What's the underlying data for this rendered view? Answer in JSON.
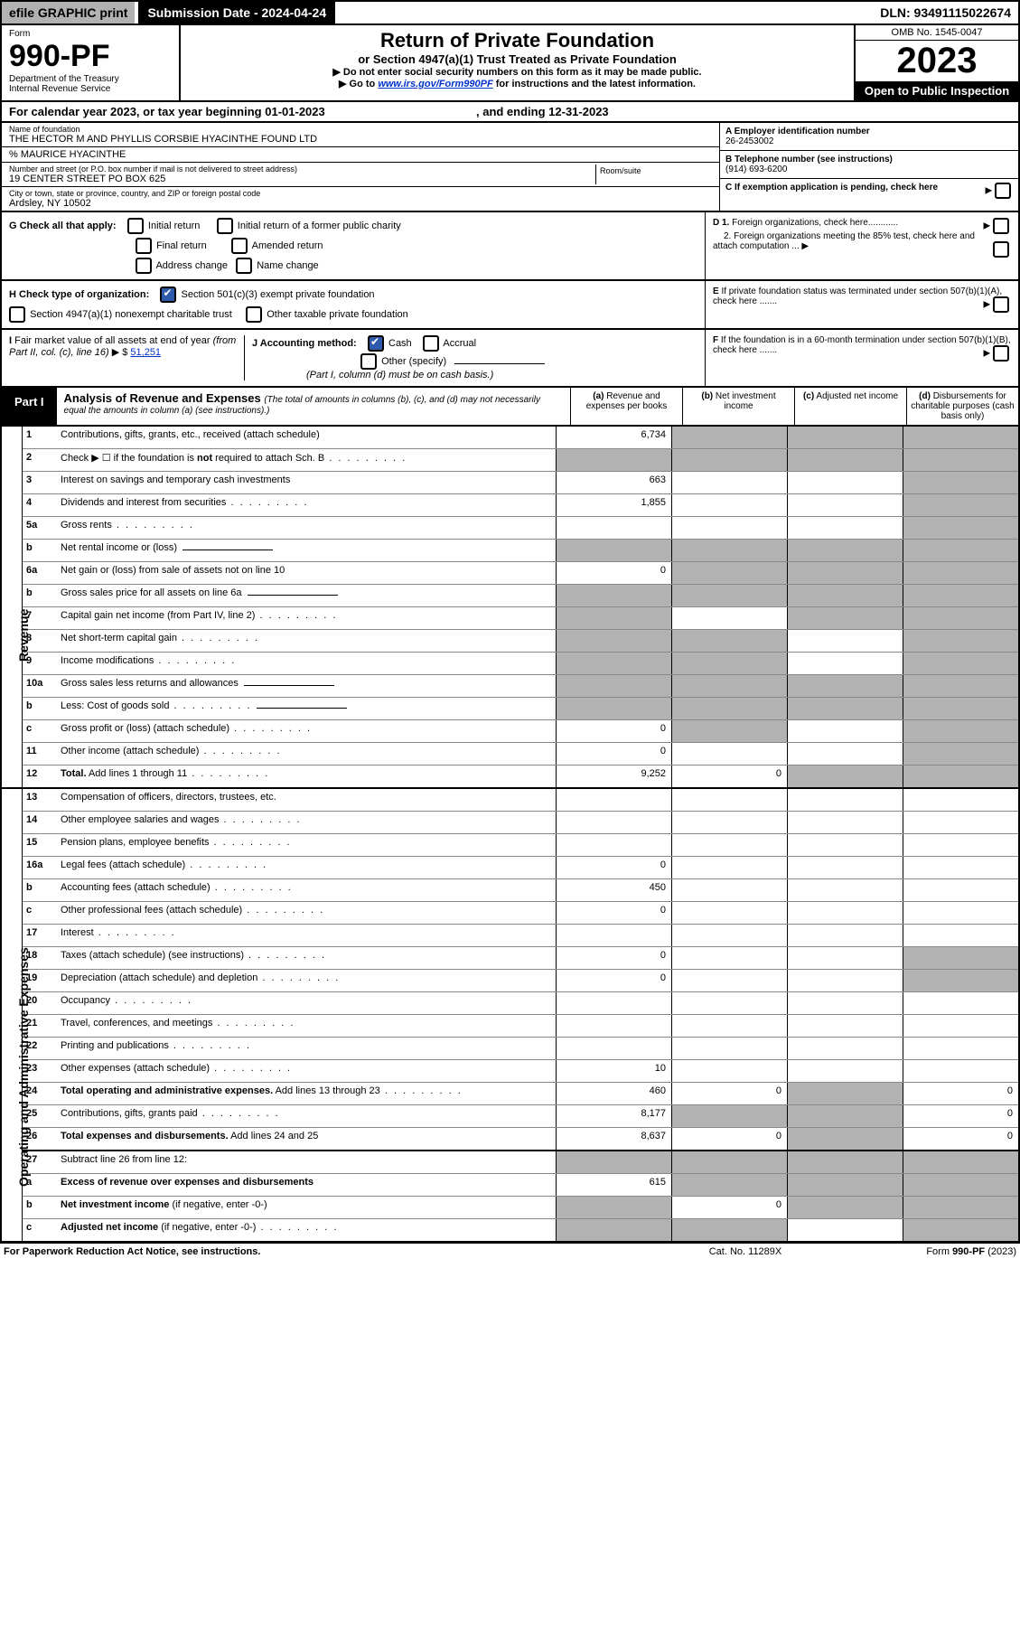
{
  "topbar": {
    "efile": "efile GRAPHIC print",
    "submission": "Submission Date - 2024-04-24",
    "dln": "DLN: 93491115022674"
  },
  "header": {
    "form_label": "Form",
    "form_no": "990-PF",
    "dept1": "Department of the Treasury",
    "dept2": "Internal Revenue Service",
    "title": "Return of Private Foundation",
    "sub": "or Section 4947(a)(1) Trust Treated as Private Foundation",
    "note1": "▶ Do not enter social security numbers on this form as it may be made public.",
    "note2_pre": "▶ Go to ",
    "note2_link": "www.irs.gov/Form990PF",
    "note2_post": " for instructions and the latest information.",
    "omb": "OMB No. 1545-0047",
    "year": "2023",
    "open": "Open to Public Inspection"
  },
  "calyear": {
    "text_pre": "For calendar year 2023, or tax year beginning ",
    "start": "01-01-2023",
    "text_mid": " , and ending ",
    "end": "12-31-2023"
  },
  "ident": {
    "name_lbl": "Name of foundation",
    "name": "THE HECTOR M AND PHYLLIS CORSBIE HYACINTHE FOUND LTD",
    "careof": "% MAURICE HYACINTHE",
    "addr_lbl": "Number and street (or P.O. box number if mail is not delivered to street address)",
    "addr": "19 CENTER STREET PO BOX 625",
    "room_lbl": "Room/suite",
    "city_lbl": "City or town, state or province, country, and ZIP or foreign postal code",
    "city": "Ardsley, NY  10502",
    "a_lbl": "A Employer identification number",
    "ein": "26-2453002",
    "b_lbl": "B Telephone number (see instructions)",
    "phone": "(914) 693-6200",
    "c_lbl": "C If exemption application is pending, check here"
  },
  "g": {
    "lbl": "G Check all that apply:",
    "opt_initial": "Initial return",
    "opt_former": "Initial return of a former public charity",
    "opt_final": "Final return",
    "opt_amended": "Amended return",
    "opt_addr": "Address change",
    "opt_name": "Name change",
    "d1": "D 1. Foreign organizations, check here............",
    "d2": "2. Foreign organizations meeting the 85% test, check here and attach computation ...  ▶"
  },
  "h": {
    "lbl": "H Check type of organization:",
    "opt_501": "Section 501(c)(3) exempt private foundation",
    "opt_4947": "Section 4947(a)(1) nonexempt charitable trust",
    "opt_other": "Other taxable private foundation",
    "e": "E  If private foundation status was terminated under section 507(b)(1)(A), check here ......."
  },
  "i": {
    "lbl_pre": "I Fair market value of all assets at end of year (from Part II, col. (c), line 16)  ▶ $ ",
    "fmv": "51,251",
    "j_lbl": "J Accounting method:",
    "j_cash": "Cash",
    "j_accrual": "Accrual",
    "j_other": "Other (specify)",
    "j_note": "(Part I, column (d) must be on cash basis.)",
    "f": "F  If the foundation is in a 60-month termination under section 507(b)(1)(B), check here ......."
  },
  "part1": {
    "label": "Part I",
    "title": "Analysis of Revenue and Expenses ",
    "title_note": "(The total of amounts in columns (b), (c), and (d) may not necessarily equal the amounts in column (a) (see instructions).)",
    "col_a": "(a) Revenue and expenses per books",
    "col_b": "(b) Net investment income",
    "col_c": "(c) Adjusted net income",
    "col_d": "(d) Disbursements for charitable purposes (cash basis only)"
  },
  "sides": {
    "revenue": "Revenue",
    "expenses": "Operating and Administrative Expenses"
  },
  "rows": [
    {
      "no": "1",
      "desc": "Contributions, gifts, grants, etc., received (attach schedule)",
      "a": "6,734",
      "b_shade": true,
      "c_shade": true,
      "d_shade": true
    },
    {
      "no": "2",
      "desc_html": "Check ▶ ☐ if the foundation is <b>not</b> required to attach Sch. B",
      "dots": true,
      "a_shade": true,
      "b_shade": true,
      "c_shade": true,
      "d_shade": true
    },
    {
      "no": "3",
      "desc": "Interest on savings and temporary cash investments",
      "a": "663",
      "d_shade": true
    },
    {
      "no": "4",
      "desc": "Dividends and interest from securities",
      "dots": true,
      "a": "1,855",
      "d_shade": true
    },
    {
      "no": "5a",
      "desc": "Gross rents",
      "dots": true,
      "d_shade": true
    },
    {
      "no": "b",
      "desc": "Net rental income or (loss)",
      "subfield": true,
      "a_shade": true,
      "b_shade": true,
      "c_shade": true,
      "d_shade": true
    },
    {
      "no": "6a",
      "desc": "Net gain or (loss) from sale of assets not on line 10",
      "a": "0",
      "b_shade": true,
      "c_shade": true,
      "d_shade": true
    },
    {
      "no": "b",
      "desc": "Gross sales price for all assets on line 6a",
      "subfield": true,
      "a_shade": true,
      "b_shade": true,
      "c_shade": true,
      "d_shade": true
    },
    {
      "no": "7",
      "desc": "Capital gain net income (from Part IV, line 2)",
      "dots": true,
      "a_shade": true,
      "c_shade": true,
      "d_shade": true
    },
    {
      "no": "8",
      "desc": "Net short-term capital gain",
      "dots": true,
      "a_shade": true,
      "b_shade": true,
      "d_shade": true
    },
    {
      "no": "9",
      "desc": "Income modifications",
      "dots": true,
      "a_shade": true,
      "b_shade": true,
      "d_shade": true
    },
    {
      "no": "10a",
      "desc": "Gross sales less returns and allowances",
      "subfield": true,
      "a_shade": true,
      "b_shade": true,
      "c_shade": true,
      "d_shade": true
    },
    {
      "no": "b",
      "desc": "Less: Cost of goods sold",
      "dots": true,
      "subfield": true,
      "a_shade": true,
      "b_shade": true,
      "c_shade": true,
      "d_shade": true
    },
    {
      "no": "c",
      "desc": "Gross profit or (loss) (attach schedule)",
      "dots": true,
      "a": "0",
      "b_shade": true,
      "d_shade": true
    },
    {
      "no": "11",
      "desc": "Other income (attach schedule)",
      "dots": true,
      "a": "0",
      "d_shade": true
    },
    {
      "no": "12",
      "desc_bold": "Total.",
      "desc": " Add lines 1 through 11",
      "dots": true,
      "a": "9,252",
      "b": "0",
      "c_shade": true,
      "d_shade": true,
      "divider": true
    }
  ],
  "exp_rows": [
    {
      "no": "13",
      "desc": "Compensation of officers, directors, trustees, etc."
    },
    {
      "no": "14",
      "desc": "Other employee salaries and wages",
      "dots": true
    },
    {
      "no": "15",
      "desc": "Pension plans, employee benefits",
      "dots": true
    },
    {
      "no": "16a",
      "desc": "Legal fees (attach schedule)",
      "dots": true,
      "a": "0"
    },
    {
      "no": "b",
      "desc": "Accounting fees (attach schedule)",
      "dots": true,
      "a": "450"
    },
    {
      "no": "c",
      "desc": "Other professional fees (attach schedule)",
      "dots": true,
      "a": "0"
    },
    {
      "no": "17",
      "desc": "Interest",
      "dots": true
    },
    {
      "no": "18",
      "desc": "Taxes (attach schedule) (see instructions)",
      "dots": true,
      "a": "0",
      "d_shade": true
    },
    {
      "no": "19",
      "desc": "Depreciation (attach schedule) and depletion",
      "dots": true,
      "a": "0",
      "d_shade": true
    },
    {
      "no": "20",
      "desc": "Occupancy",
      "dots": true
    },
    {
      "no": "21",
      "desc": "Travel, conferences, and meetings",
      "dots": true
    },
    {
      "no": "22",
      "desc": "Printing and publications",
      "dots": true
    },
    {
      "no": "23",
      "desc": "Other expenses (attach schedule)",
      "dots": true,
      "a": "10"
    },
    {
      "no": "24",
      "desc_bold": "Total operating and administrative expenses.",
      "desc": " Add lines 13 through 23",
      "dots": true,
      "a": "460",
      "b": "0",
      "d": "0",
      "c_shade": true
    },
    {
      "no": "25",
      "desc": "Contributions, gifts, grants paid",
      "dots": true,
      "a": "8,177",
      "b_shade": true,
      "c_shade": true,
      "d": "0"
    },
    {
      "no": "26",
      "desc_bold": "Total expenses and disbursements.",
      "desc": " Add lines 24 and 25",
      "a": "8,637",
      "b": "0",
      "c_shade": true,
      "d": "0",
      "divider": true
    },
    {
      "no": "27",
      "desc": "Subtract line 26 from line 12:",
      "a_shade": true,
      "b_shade": true,
      "c_shade": true,
      "d_shade": true
    },
    {
      "no": "a",
      "desc_bold": "Excess of revenue over expenses and disbursements",
      "a": "615",
      "b_shade": true,
      "c_shade": true,
      "d_shade": true
    },
    {
      "no": "b",
      "desc_bold": "Net investment income",
      "desc": " (if negative, enter -0-)",
      "a_shade": true,
      "b": "0",
      "c_shade": true,
      "d_shade": true
    },
    {
      "no": "c",
      "desc_bold": "Adjusted net income",
      "desc": " (if negative, enter -0-)",
      "dots": true,
      "a_shade": true,
      "b_shade": true,
      "d_shade": true
    }
  ],
  "footer": {
    "left": "For Paperwork Reduction Act Notice, see instructions.",
    "mid": "Cat. No. 11289X",
    "right": "Form 990-PF (2023)"
  }
}
